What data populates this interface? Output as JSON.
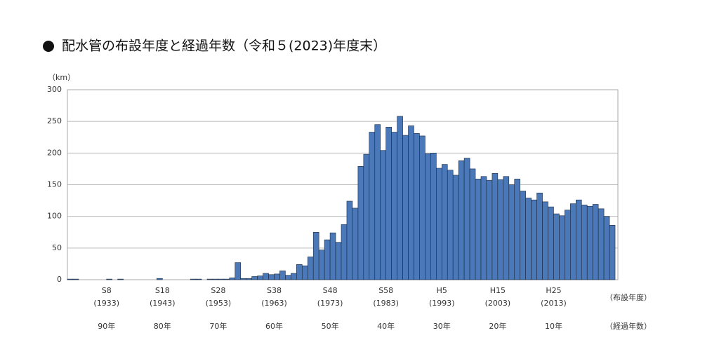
{
  "chart_data": {
    "type": "bar",
    "title": "配水管の布設年度と経過年数（令和５(2023)年度末）",
    "y_label": "（km）",
    "x_label": "（布設年度）",
    "elapsed_label": "（経過年数）",
    "color": "#4a78b8",
    "grid": true,
    "x": [
      1926,
      1927,
      1928,
      1929,
      1930,
      1931,
      1932,
      1933,
      1934,
      1935,
      1936,
      1937,
      1938,
      1939,
      1940,
      1941,
      1942,
      1943,
      1944,
      1945,
      1946,
      1947,
      1948,
      1949,
      1950,
      1951,
      1952,
      1953,
      1954,
      1955,
      1956,
      1957,
      1958,
      1959,
      1960,
      1961,
      1962,
      1963,
      1964,
      1965,
      1966,
      1967,
      1968,
      1969,
      1970,
      1971,
      1972,
      1973,
      1974,
      1975,
      1976,
      1977,
      1978,
      1979,
      1980,
      1981,
      1982,
      1983,
      1984,
      1985,
      1986,
      1987,
      1988,
      1989,
      1990,
      1991,
      1992,
      1993,
      1994,
      1995,
      1996,
      1997,
      1998,
      1999,
      2000,
      2001,
      2002,
      2003,
      2004,
      2005,
      2006,
      2007,
      2008,
      2009,
      2010,
      2011,
      2012,
      2013,
      2014,
      2015,
      2016,
      2017,
      2018,
      2019,
      2020,
      2021,
      2022,
      2023
    ],
    "values": [
      1,
      1,
      0,
      0,
      0,
      0,
      0,
      1,
      0,
      1,
      0,
      0,
      0,
      0,
      0,
      0,
      2,
      0,
      0,
      0,
      0,
      0,
      1,
      1,
      0,
      1,
      1,
      1,
      1,
      3,
      27,
      2,
      2,
      5,
      6,
      10,
      8,
      9,
      14,
      7,
      10,
      24,
      22,
      36,
      75,
      47,
      63,
      74,
      59,
      87,
      124,
      113,
      179,
      198,
      233,
      245,
      204,
      241,
      233,
      258,
      228,
      243,
      231,
      227,
      199,
      200,
      176,
      182,
      173,
      165,
      188,
      192,
      175,
      159,
      163,
      157,
      168,
      158,
      163,
      150,
      159,
      140,
      129,
      126,
      137,
      123,
      115,
      104,
      101,
      110,
      120,
      126,
      118,
      116,
      119,
      112,
      100,
      86
    ],
    "xlim": [
      1925.5,
      2024
    ],
    "xticks": [
      {
        "value": 1933,
        "label": "S8"
      },
      {
        "value": 1943,
        "label": "S18"
      },
      {
        "value": 1953,
        "label": "S28"
      },
      {
        "value": 1963,
        "label": "S38"
      },
      {
        "value": 1973,
        "label": "S48"
      },
      {
        "value": 1983,
        "label": "S58"
      },
      {
        "value": 1993,
        "label": "H5"
      },
      {
        "value": 2003,
        "label": "H15"
      },
      {
        "value": 2013,
        "label": "H25"
      }
    ],
    "xtick_years": [
      "(1933)",
      "(1943)",
      "(1953)",
      "(1963)",
      "(1973)",
      "(1983)",
      "(1993)",
      "(2003)",
      "(2013)"
    ],
    "elapsed_ticks": [
      {
        "value": 1933,
        "label": "90年"
      },
      {
        "value": 1943,
        "label": "80年"
      },
      {
        "value": 1953,
        "label": "70年"
      },
      {
        "value": 1963,
        "label": "60年"
      },
      {
        "value": 1973,
        "label": "50年"
      },
      {
        "value": 1983,
        "label": "40年"
      },
      {
        "value": 1993,
        "label": "30年"
      },
      {
        "value": 2003,
        "label": "20年"
      },
      {
        "value": 2013,
        "label": "10年"
      }
    ],
    "ylim": [
      0,
      300
    ],
    "yticks": [
      0,
      50,
      100,
      150,
      200,
      250,
      300
    ]
  }
}
